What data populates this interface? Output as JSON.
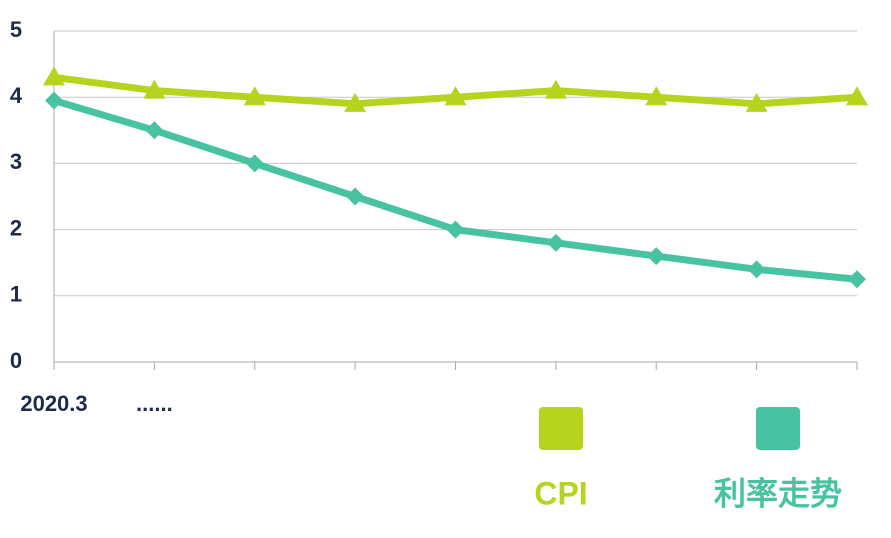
{
  "chart_data": {
    "type": "line",
    "categories": [
      "2020.3",
      "......",
      null,
      null,
      null,
      null,
      null,
      null,
      null
    ],
    "series": [
      {
        "name": "CPI",
        "color": "#b6d41e",
        "marker": "triangle",
        "values": [
          4.3,
          4.1,
          4.0,
          3.9,
          4.0,
          4.1,
          4.0,
          3.9,
          4.0
        ]
      },
      {
        "name": "利率走势",
        "color": "#48c3a1",
        "marker": "diamond",
        "values": [
          3.95,
          3.5,
          3.0,
          2.5,
          2.0,
          1.8,
          1.6,
          1.4,
          1.25
        ]
      }
    ],
    "ylim": [
      0,
      5
    ],
    "yticks": [
      0,
      1,
      2,
      3,
      4,
      5
    ],
    "grid": true
  }
}
